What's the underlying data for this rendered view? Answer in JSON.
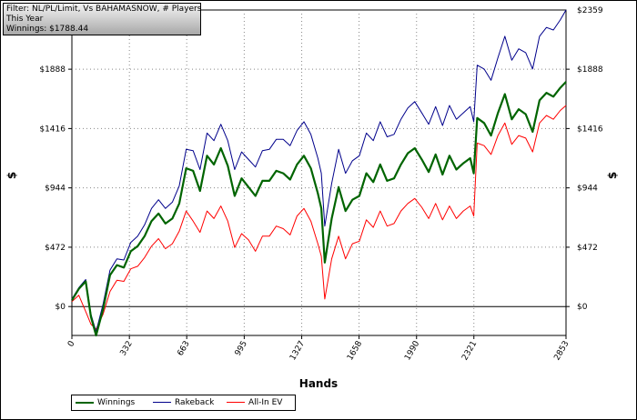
{
  "filter": {
    "line1": "Filter: NL/PL/Limit, Vs BAHAMASNOW, # Players",
    "line2": "This Year",
    "line3": "Winnings: $1788.44"
  },
  "chart_data": {
    "type": "line",
    "xlabel": "Hands",
    "ylabel_left": "$",
    "ylabel_right": "$",
    "xlim": [
      0,
      2853
    ],
    "ylim": [
      -230,
      2359
    ],
    "x_ticks": [
      0,
      332,
      663,
      995,
      1327,
      1658,
      1990,
      2321,
      2853
    ],
    "x_tick_labels": [
      "0",
      "332",
      "663",
      "995",
      "1327",
      "1658",
      "1990",
      "2321",
      "2853"
    ],
    "y_ticks": [
      0,
      472,
      944,
      1416,
      1888
    ],
    "y_tick_labels": [
      "$0",
      "$472",
      "$944",
      "$1416",
      "$1888"
    ],
    "y_top_label": "$2359",
    "grid": true,
    "legend_position": "bottom-left",
    "series": [
      {
        "name": "Winnings",
        "color": "#006400",
        "x": [
          0,
          40,
          80,
          110,
          140,
          180,
          220,
          260,
          300,
          340,
          380,
          420,
          460,
          500,
          540,
          580,
          620,
          660,
          700,
          740,
          780,
          820,
          860,
          900,
          940,
          980,
          1020,
          1060,
          1100,
          1140,
          1180,
          1220,
          1260,
          1300,
          1340,
          1380,
          1420,
          1440,
          1460,
          1500,
          1540,
          1580,
          1620,
          1660,
          1700,
          1740,
          1780,
          1820,
          1860,
          1900,
          1940,
          1980,
          2020,
          2060,
          2100,
          2140,
          2180,
          2220,
          2260,
          2300,
          2320,
          2340,
          2380,
          2420,
          2460,
          2500,
          2540,
          2580,
          2620,
          2660,
          2700,
          2740,
          2780,
          2820,
          2853
        ],
        "values": [
          50,
          140,
          200,
          -80,
          -230,
          -20,
          250,
          330,
          310,
          440,
          480,
          560,
          680,
          740,
          660,
          700,
          820,
          1100,
          1080,
          920,
          1200,
          1130,
          1260,
          1120,
          880,
          1020,
          950,
          880,
          1000,
          1000,
          1080,
          1060,
          1010,
          1130,
          1200,
          1100,
          900,
          780,
          350,
          700,
          950,
          760,
          850,
          880,
          1060,
          990,
          1130,
          1000,
          1020,
          1130,
          1220,
          1260,
          1170,
          1070,
          1210,
          1050,
          1200,
          1090,
          1140,
          1180,
          1060,
          1500,
          1460,
          1360,
          1540,
          1690,
          1490,
          1570,
          1530,
          1390,
          1640,
          1700,
          1670,
          1740,
          1788
        ]
      },
      {
        "name": "Rakeback",
        "color": "#00008b",
        "x": [
          0,
          40,
          80,
          110,
          140,
          180,
          220,
          260,
          300,
          340,
          380,
          420,
          460,
          500,
          540,
          580,
          620,
          660,
          700,
          740,
          780,
          820,
          860,
          900,
          940,
          980,
          1020,
          1060,
          1100,
          1140,
          1180,
          1220,
          1260,
          1300,
          1340,
          1380,
          1420,
          1440,
          1460,
          1500,
          1540,
          1580,
          1620,
          1660,
          1700,
          1740,
          1780,
          1820,
          1860,
          1900,
          1940,
          1980,
          2020,
          2060,
          2100,
          2140,
          2180,
          2220,
          2260,
          2300,
          2320,
          2340,
          2380,
          2420,
          2460,
          2500,
          2540,
          2580,
          2620,
          2660,
          2700,
          2740,
          2780,
          2820,
          2853
        ],
        "values": [
          60,
          150,
          215,
          -60,
          -200,
          20,
          290,
          380,
          370,
          510,
          560,
          650,
          780,
          850,
          780,
          830,
          960,
          1250,
          1240,
          1090,
          1380,
          1320,
          1450,
          1320,
          1090,
          1230,
          1170,
          1110,
          1240,
          1250,
          1330,
          1330,
          1280,
          1400,
          1470,
          1370,
          1180,
          1060,
          640,
          980,
          1250,
          1060,
          1160,
          1200,
          1380,
          1320,
          1470,
          1350,
          1370,
          1490,
          1580,
          1630,
          1540,
          1450,
          1590,
          1440,
          1600,
          1490,
          1540,
          1590,
          1470,
          1920,
          1890,
          1800,
          1980,
          2150,
          1960,
          2050,
          2020,
          1890,
          2150,
          2220,
          2200,
          2280,
          2359
        ]
      },
      {
        "name": "All-In EV",
        "color": "#ff0000",
        "x": [
          0,
          40,
          80,
          110,
          140,
          180,
          220,
          260,
          300,
          340,
          380,
          420,
          460,
          500,
          540,
          580,
          620,
          660,
          700,
          740,
          780,
          820,
          860,
          900,
          940,
          980,
          1020,
          1060,
          1100,
          1140,
          1180,
          1220,
          1260,
          1300,
          1340,
          1380,
          1420,
          1440,
          1460,
          1500,
          1540,
          1580,
          1620,
          1660,
          1700,
          1740,
          1780,
          1820,
          1860,
          1900,
          1940,
          1980,
          2020,
          2060,
          2100,
          2140,
          2180,
          2220,
          2260,
          2300,
          2320,
          2340,
          2380,
          2420,
          2460,
          2500,
          2540,
          2580,
          2620,
          2660,
          2700,
          2740,
          2780,
          2820,
          2853
        ],
        "values": [
          40,
          90,
          -40,
          -140,
          -180,
          -60,
          120,
          210,
          200,
          300,
          320,
          390,
          480,
          540,
          460,
          500,
          600,
          760,
          680,
          590,
          760,
          700,
          800,
          680,
          470,
          580,
          530,
          440,
          560,
          560,
          640,
          620,
          570,
          720,
          780,
          680,
          500,
          400,
          60,
          380,
          560,
          380,
          500,
          520,
          690,
          630,
          760,
          640,
          660,
          760,
          820,
          860,
          790,
          700,
          820,
          690,
          800,
          700,
          760,
          800,
          720,
          1300,
          1280,
          1210,
          1360,
          1460,
          1290,
          1360,
          1340,
          1230,
          1460,
          1520,
          1490,
          1560,
          1600
        ]
      }
    ]
  }
}
